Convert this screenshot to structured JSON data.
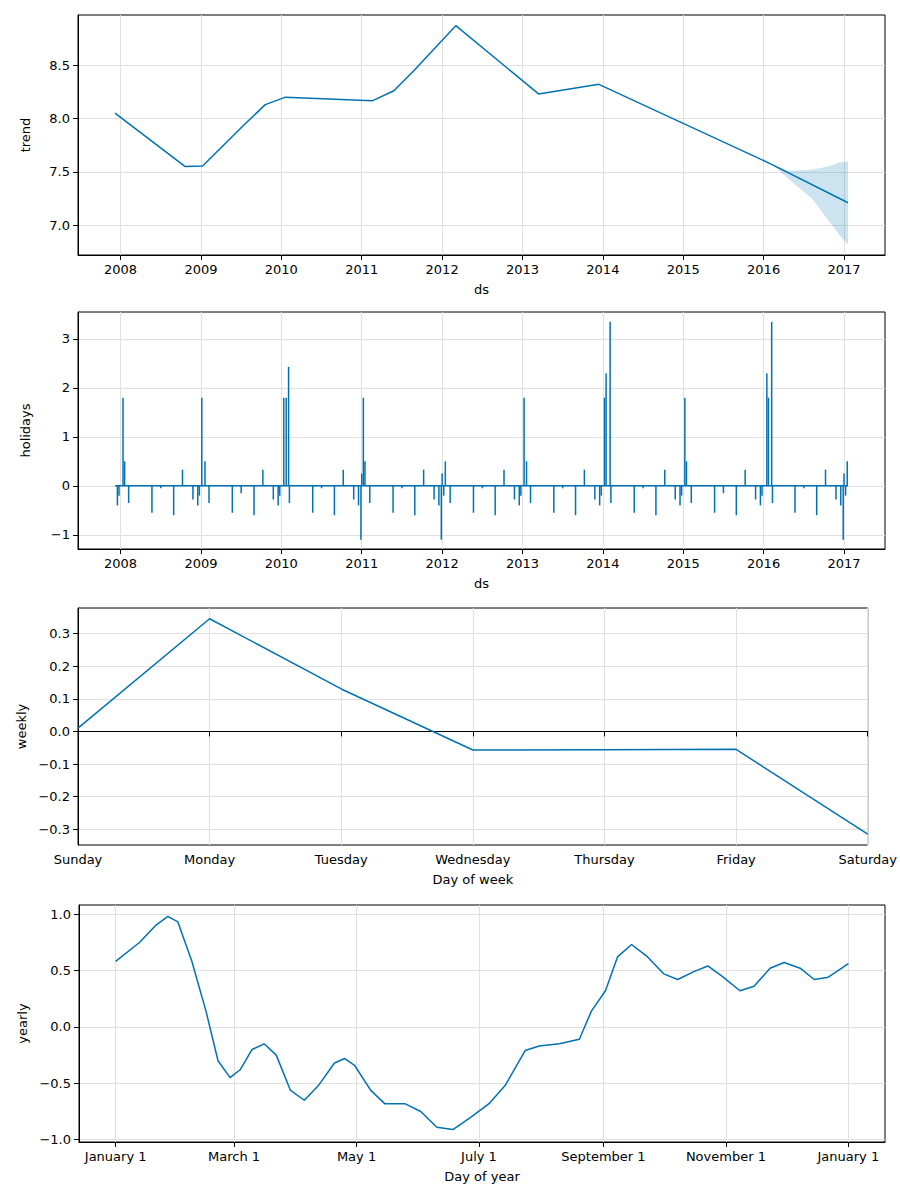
{
  "chart_data": [
    {
      "type": "line",
      "xlabel": "ds",
      "ylabel": "trend",
      "color": "#0072b2",
      "grid": true,
      "xlim": [
        2007.47,
        2017.51
      ],
      "xticks": [
        2008,
        2009,
        2010,
        2011,
        2012,
        2013,
        2014,
        2015,
        2016,
        2017
      ],
      "ylim": [
        6.72,
        8.97
      ],
      "yticks": [
        {
          "value": 7,
          "label": "7.0"
        },
        7.5,
        {
          "value": 8,
          "label": "8.0"
        },
        8.5
      ],
      "x": [
        2007.93,
        2008.8,
        2009.02,
        2009.55,
        2009.8,
        2010.05,
        2011.13,
        2011.4,
        2011.65,
        2012.17,
        2013.2,
        2013.95,
        2016.1,
        2017.05
      ],
      "values": [
        8.05,
        7.55,
        7.555,
        7.95,
        8.13,
        8.2,
        8.165,
        8.26,
        8.45,
        8.87,
        8.23,
        8.32,
        7.57,
        7.21
      ],
      "interval": {
        "x": [
          2016.1,
          2016.3,
          2016.6,
          2016.8,
          2016.95,
          2017.05
        ],
        "lower": [
          7.57,
          7.44,
          7.25,
          7.05,
          6.9,
          6.82
        ],
        "upper": [
          7.57,
          7.51,
          7.52,
          7.55,
          7.59,
          7.6
        ]
      }
    },
    {
      "type": "line",
      "xlabel": "ds",
      "ylabel": "holidays",
      "color": "#0072b2",
      "grid": true,
      "xlim": [
        2007.47,
        2017.51
      ],
      "xticks": [
        2008,
        2009,
        2010,
        2011,
        2012,
        2013,
        2014,
        2015,
        2016,
        2017
      ],
      "ylim": [
        -1.29,
        3.55
      ],
      "yticks": [
        {
          "value": -1,
          "label": "−1"
        },
        0,
        1,
        2,
        3
      ],
      "series": [
        {
          "type": "line",
          "x": [
            2007.93,
            2017.05
          ],
          "values": [
            0,
            0
          ]
        },
        {
          "type": "bar",
          "x": [
            2007.96,
            2007.98,
            2008.03,
            2008.05,
            2008.1,
            2008.39,
            2008.5,
            2008.66,
            2008.77,
            2008.9,
            2008.96,
            2008.98,
            2009.01,
            2009.05,
            2009.1,
            2009.39,
            2009.5,
            2009.66,
            2009.77,
            2009.9,
            2009.96,
            2009.98,
            2010.03,
            2010.06,
            2010.09,
            2010.1,
            2010.39,
            2010.5,
            2010.66,
            2010.77,
            2010.9,
            2010.96,
            2010.99,
            2011.0,
            2011.02,
            2011.04,
            2011.1,
            2011.39,
            2011.5,
            2011.66,
            2011.77,
            2011.9,
            2011.96,
            2011.99,
            2012.0,
            2012.02,
            2012.04,
            2012.1,
            2012.39,
            2012.5,
            2012.66,
            2012.77,
            2012.9,
            2012.96,
            2012.98,
            2013.02,
            2013.05,
            2013.1,
            2013.39,
            2013.5,
            2013.66,
            2013.77,
            2013.9,
            2013.96,
            2013.98,
            2014.02,
            2014.04,
            2014.09,
            2014.1,
            2014.39,
            2014.5,
            2014.66,
            2014.77,
            2014.9,
            2014.96,
            2014.98,
            2015.02,
            2015.04,
            2015.1,
            2015.39,
            2015.5,
            2015.66,
            2015.77,
            2015.9,
            2015.96,
            2015.98,
            2016.04,
            2016.06,
            2016.1,
            2016.11,
            2016.39,
            2016.5,
            2016.66,
            2016.77,
            2016.9,
            2016.96,
            2016.99,
            2017.0,
            2017.02,
            2017.04
          ],
          "values": [
            -0.4,
            -0.2,
            1.8,
            0.5,
            -0.35,
            -0.55,
            -0.05,
            -0.6,
            0.33,
            -0.28,
            -0.4,
            -0.2,
            1.8,
            0.5,
            -0.35,
            -0.55,
            -0.15,
            -0.6,
            0.33,
            -0.28,
            -0.4,
            -0.2,
            1.8,
            1.8,
            2.43,
            -0.35,
            -0.55,
            -0.05,
            -0.6,
            0.33,
            -0.28,
            -0.4,
            -1.1,
            0.25,
            1.8,
            0.5,
            -0.35,
            -0.55,
            -0.05,
            -0.6,
            0.33,
            -0.28,
            -0.4,
            -1.1,
            0.25,
            -0.2,
            0.5,
            -0.35,
            -0.55,
            -0.05,
            -0.6,
            0.33,
            -0.28,
            -0.4,
            -0.2,
            1.8,
            0.5,
            -0.35,
            -0.55,
            -0.05,
            -0.6,
            0.33,
            -0.28,
            -0.4,
            -0.2,
            1.8,
            2.3,
            3.35,
            -0.35,
            -0.55,
            -0.05,
            -0.6,
            0.33,
            -0.28,
            -0.4,
            -0.2,
            1.8,
            0.5,
            -0.35,
            -0.55,
            -0.15,
            -0.6,
            0.33,
            -0.28,
            -0.4,
            -0.2,
            2.3,
            1.8,
            3.35,
            -0.35,
            -0.55,
            -0.05,
            -0.6,
            0.33,
            -0.28,
            -0.4,
            -1.1,
            0.25,
            -0.2,
            0.5
          ]
        }
      ]
    },
    {
      "type": "line",
      "xlabel": "Day of week",
      "ylabel": "weekly",
      "color": "#0072b2",
      "grid": true,
      "categories": [
        "Sunday",
        "Monday",
        "Tuesday",
        "Wednesday",
        "Thursday",
        "Friday",
        "Saturday"
      ],
      "values": [
        0.01,
        0.345,
        0.13,
        -0.057,
        -0.056,
        -0.055,
        -0.315
      ],
      "ylim": [
        -0.348,
        0.378
      ],
      "yticks": [
        {
          "value": -0.3,
          "label": "−0.3"
        },
        {
          "value": -0.2,
          "label": "−0.2"
        },
        {
          "value": -0.1,
          "label": "−0.1"
        },
        {
          "value": 0,
          "label": "0.0"
        },
        0.1,
        0.2,
        0.3
      ]
    },
    {
      "type": "line",
      "xlabel": "Day of year",
      "ylabel": "yearly",
      "color": "#0072b2",
      "grid": true,
      "xlim": [
        -18.25,
        383.25
      ],
      "xticks": [
        {
          "value": 0,
          "label": "January 1"
        },
        {
          "value": 59,
          "label": "March 1"
        },
        {
          "value": 120,
          "label": "May 1"
        },
        {
          "value": 181,
          "label": "July 1"
        },
        {
          "value": 243,
          "label": "September 1"
        },
        {
          "value": 304,
          "label": "November 1"
        },
        {
          "value": 365,
          "label": "January 1"
        }
      ],
      "ylim": [
        -1.02,
        1.08
      ],
      "yticks": [
        {
          "value": -1,
          "label": "−1.0"
        },
        {
          "value": -0.5,
          "label": "−0.5"
        },
        {
          "value": 0,
          "label": "0.0"
        },
        0.5,
        {
          "value": 1,
          "label": "1.0"
        }
      ],
      "x": [
        0,
        12,
        20,
        26,
        31,
        38,
        45,
        51,
        57,
        62,
        68,
        74,
        80,
        87,
        94,
        101,
        109,
        114,
        119,
        127,
        134,
        144,
        152,
        160,
        168,
        177,
        186,
        194,
        204,
        211,
        221,
        231,
        237,
        244,
        250,
        257,
        265,
        273,
        280,
        288,
        295,
        302,
        311,
        318,
        326,
        333,
        341,
        348,
        355,
        365
      ],
      "values": [
        0.58,
        0.75,
        0.9,
        0.98,
        0.93,
        0.58,
        0.14,
        -0.3,
        -0.45,
        -0.38,
        -0.2,
        -0.15,
        -0.25,
        -0.56,
        -0.65,
        -0.52,
        -0.32,
        -0.28,
        -0.34,
        -0.56,
        -0.68,
        -0.68,
        -0.75,
        -0.89,
        -0.91,
        -0.8,
        -0.68,
        -0.52,
        -0.21,
        -0.17,
        -0.15,
        -0.11,
        0.14,
        0.32,
        0.62,
        0.73,
        0.62,
        0.47,
        0.42,
        0.49,
        0.54,
        0.45,
        0.32,
        0.36,
        0.52,
        0.57,
        0.52,
        0.42,
        0.44,
        0.56
      ]
    }
  ]
}
